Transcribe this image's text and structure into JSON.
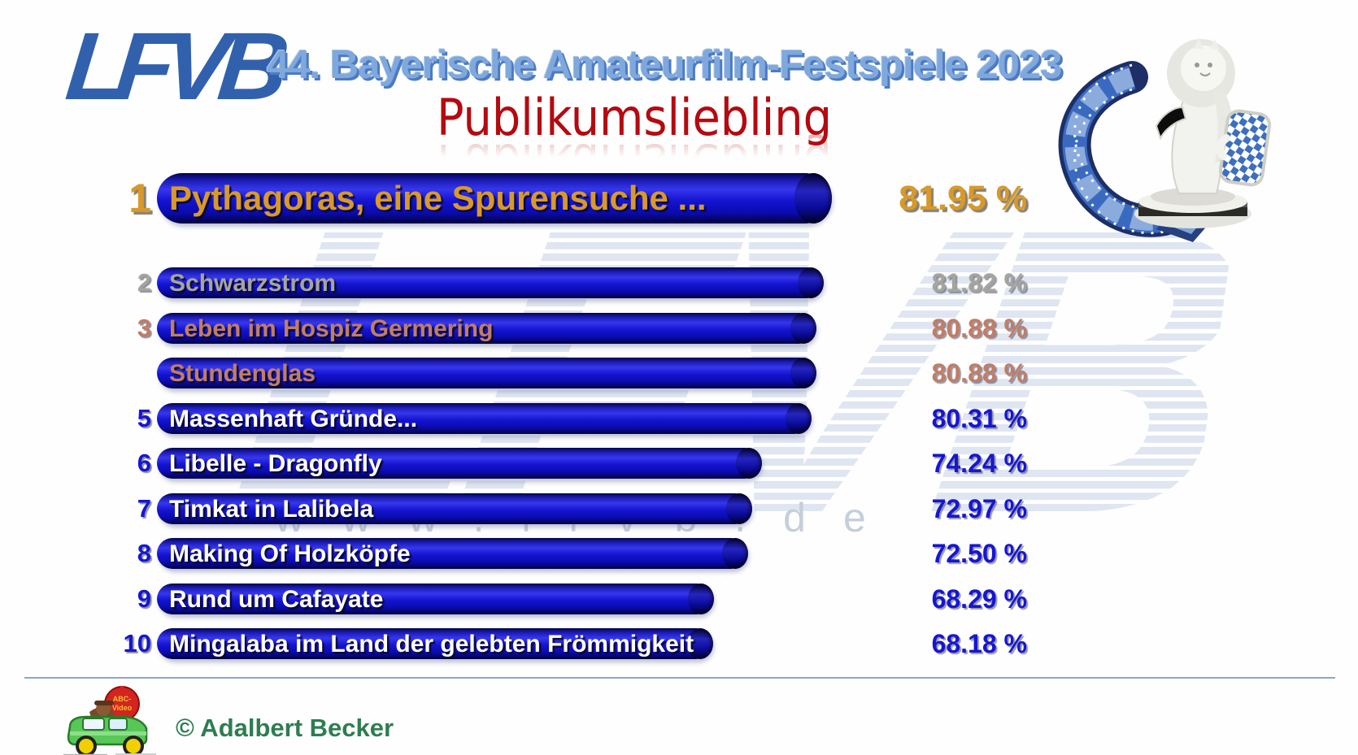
{
  "header": {
    "logo_text": "LFVB",
    "title": "44. Bayerische Amateurfilm-Festspiele 2023",
    "subtitle": "Publikumsliebling"
  },
  "chart_data": {
    "type": "bar",
    "orientation": "horizontal",
    "unit": "%",
    "xlim": [
      0,
      100
    ],
    "title": "Publikumsliebling",
    "rows": [
      {
        "rank": "1",
        "title": "Pythagoras, eine Spurensuche ...",
        "value": 81.95,
        "percent_label": "81.95 %",
        "tier": "gold",
        "featured": true
      },
      {
        "rank": "2",
        "title": "Schwarzstrom",
        "value": 81.82,
        "percent_label": "81.82 %",
        "tier": "silver",
        "featured": false
      },
      {
        "rank": "3",
        "title": "Leben im Hospiz Germering",
        "value": 80.88,
        "percent_label": "80.88 %",
        "tier": "bronze",
        "featured": false
      },
      {
        "rank": "",
        "title": "Stundenglas",
        "value": 80.88,
        "percent_label": "80.88 %",
        "tier": "bronze",
        "featured": false
      },
      {
        "rank": "5",
        "title": "Massenhaft Gründe...",
        "value": 80.31,
        "percent_label": "80.31 %",
        "tier": "blue",
        "featured": false
      },
      {
        "rank": "6",
        "title": "Libelle - Dragonfly",
        "value": 74.24,
        "percent_label": "74.24 %",
        "tier": "blue",
        "featured": false
      },
      {
        "rank": "7",
        "title": "Timkat in Lalibela",
        "value": 72.97,
        "percent_label": "72.97 %",
        "tier": "blue",
        "featured": false
      },
      {
        "rank": "8",
        "title": "Making Of Holzköpfe",
        "value": 72.5,
        "percent_label": "72.50 %",
        "tier": "blue",
        "featured": false
      },
      {
        "rank": "9",
        "title": "Rund um Cafayate",
        "value": 68.29,
        "percent_label": "68.29 %",
        "tier": "blue",
        "featured": false
      },
      {
        "rank": "10",
        "title": "Mingalaba im Land der gelebten Frömmigkeit",
        "value": 68.18,
        "percent_label": "68.18 %",
        "tier": "blue",
        "featured": false
      }
    ]
  },
  "watermark": {
    "letters": "LFVB",
    "url_text": "www.lfvb.de"
  },
  "footer": {
    "copyright": "© Adalbert Becker",
    "balloon_line1": "ABC-",
    "balloon_line2": "Video"
  },
  "colors": {
    "gold": "#d8992b",
    "silver": "#a5a59d",
    "bronze": "#c17d66",
    "blue": "#1616d0",
    "bar_blue": "#1414cc",
    "title_blue": "#7fa8dc",
    "subtitle_red": "#b40a10",
    "footer_green": "#2e7d52"
  }
}
